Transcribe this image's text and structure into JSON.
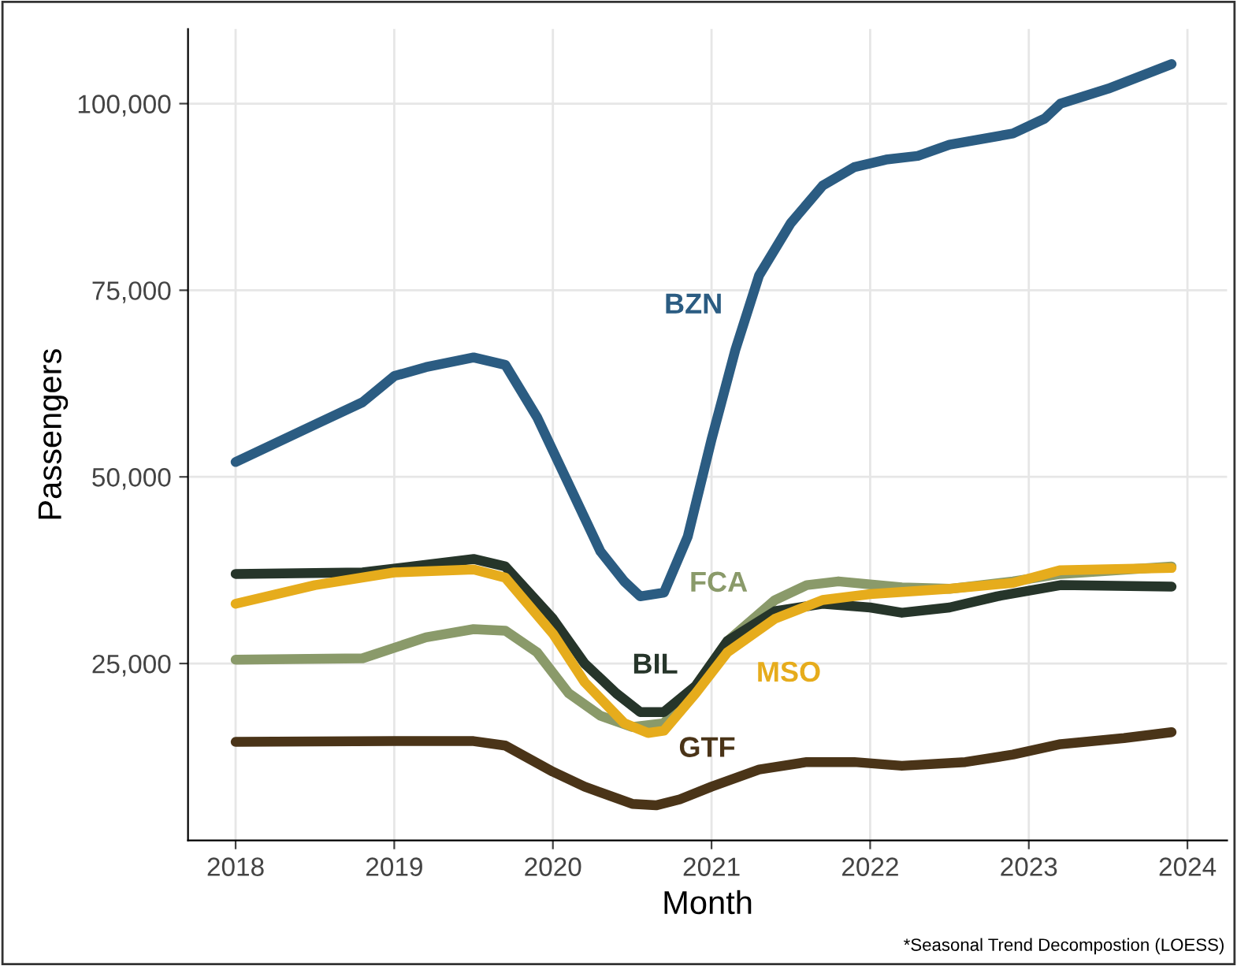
{
  "chart_data": {
    "type": "line",
    "xlabel": "Month",
    "ylabel": "Passengers",
    "annotations": [
      "*Seasonal Trend Decompostion (LOESS)"
    ],
    "xlim": [
      2017.7,
      2024.25
    ],
    "xticks": [
      2018,
      2019,
      2020,
      2021,
      2022,
      2023,
      2024
    ],
    "ylim": [
      1300,
      110000
    ],
    "yticks": [
      {
        "value": 25000,
        "label": "25,000"
      },
      {
        "value": 50000,
        "label": "50,000"
      },
      {
        "value": 75000,
        "label": "75,000"
      },
      {
        "value": 100000,
        "label": "100,000"
      }
    ],
    "grid": true,
    "legend": false,
    "marker": "none",
    "line_style": "solid",
    "series": [
      {
        "name": "BZN",
        "color": "#2b5c82",
        "x": [
          2018,
          2018.5,
          2018.8,
          2019,
          2019.2,
          2019.5,
          2019.7,
          2019.9,
          2020.1,
          2020.3,
          2020.45,
          2020.55,
          2020.7,
          2020.85,
          2021.0,
          2021.15,
          2021.3,
          2021.5,
          2021.7,
          2021.9,
          2022.1,
          2022.3,
          2022.5,
          2022.9,
          2023.1,
          2023.2,
          2023.5,
          2023.9
        ],
        "values": [
          52000,
          57000,
          60000,
          63500,
          64700,
          66000,
          65000,
          58000,
          49000,
          40000,
          36000,
          34000,
          34500,
          42000,
          55000,
          67000,
          77000,
          84000,
          89000,
          91500,
          92500,
          93000,
          94500,
          96000,
          98000,
          100000,
          102000,
          105300
        ]
      },
      {
        "name": "FCA",
        "color": "#8a9a6a",
        "x": [
          2018,
          2018.8,
          2019.2,
          2019.5,
          2019.7,
          2019.9,
          2020.1,
          2020.3,
          2020.5,
          2020.7,
          2020.9,
          2021.1,
          2021.4,
          2021.6,
          2021.8,
          2022.2,
          2022.5,
          2022.9,
          2023.2,
          2023.9
        ],
        "values": [
          25500,
          25700,
          28500,
          29600,
          29400,
          26500,
          21000,
          18000,
          16500,
          17000,
          22000,
          28000,
          33500,
          35500,
          36000,
          35200,
          35000,
          36000,
          37000,
          38000
        ]
      },
      {
        "name": "BIL",
        "color": "#26352a",
        "x": [
          2018,
          2018.8,
          2019.5,
          2019.7,
          2020.0,
          2020.2,
          2020.4,
          2020.55,
          2020.7,
          2020.9,
          2021.1,
          2021.4,
          2021.7,
          2022.0,
          2022.2,
          2022.5,
          2022.8,
          2023.2,
          2023.9
        ],
        "values": [
          37000,
          37200,
          39000,
          38000,
          31000,
          25000,
          21000,
          18500,
          18500,
          22000,
          28000,
          32000,
          33000,
          32500,
          31800,
          32500,
          34000,
          35500,
          35300
        ]
      },
      {
        "name": "MSO",
        "color": "#e6ac1c",
        "x": [
          2018,
          2018.5,
          2019,
          2019.5,
          2019.7,
          2020.0,
          2020.2,
          2020.45,
          2020.6,
          2020.7,
          2020.9,
          2021.1,
          2021.4,
          2021.7,
          2022.0,
          2022.5,
          2022.9,
          2023.2,
          2023.9
        ],
        "values": [
          33000,
          35500,
          37200,
          37600,
          36500,
          29000,
          22500,
          17000,
          15700,
          16000,
          21000,
          26500,
          31000,
          33500,
          34300,
          35000,
          35800,
          37500,
          37800
        ]
      },
      {
        "name": "GTF",
        "color": "#4a3418",
        "x": [
          2018,
          2019,
          2019.5,
          2019.7,
          2020.0,
          2020.2,
          2020.5,
          2020.65,
          2020.8,
          2021.0,
          2021.3,
          2021.6,
          2021.9,
          2022.2,
          2022.6,
          2022.9,
          2023.2,
          2023.6,
          2023.9
        ],
        "values": [
          14500,
          14600,
          14600,
          14000,
          10500,
          8500,
          6200,
          6000,
          6800,
          8500,
          10800,
          11800,
          11800,
          11300,
          11800,
          12800,
          14200,
          15000,
          15800
        ]
      }
    ]
  }
}
